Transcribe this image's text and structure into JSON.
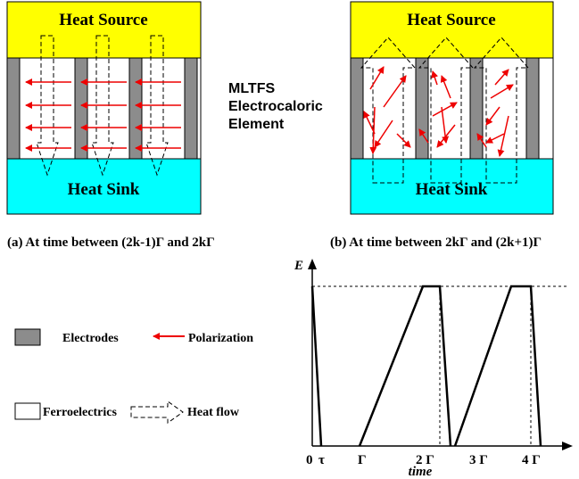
{
  "panel_a": {
    "heat_source": "Heat Source",
    "heat_sink": "Heat Sink",
    "caption": "(a) At time between (2k-1)Γ  and 2kΓ"
  },
  "panel_b": {
    "heat_source": "Heat Source",
    "heat_sink": "Heat Sink",
    "caption": "(b) At time between 2kΓ  and (2k+1)Γ"
  },
  "element_label": [
    "MLTFS",
    "Electrocaloric",
    "Element"
  ],
  "legend": {
    "electrodes": "Electrodes",
    "polarization": "Polarization",
    "ferroelectrics": "Ferroelectrics",
    "heat_flow": "Heat flow"
  },
  "plot": {
    "y_label": "E",
    "x_label": "time",
    "tick_labels": [
      "0",
      "τ",
      "Γ",
      "2 Γ",
      "3 Γ",
      "4 Γ"
    ]
  }
}
